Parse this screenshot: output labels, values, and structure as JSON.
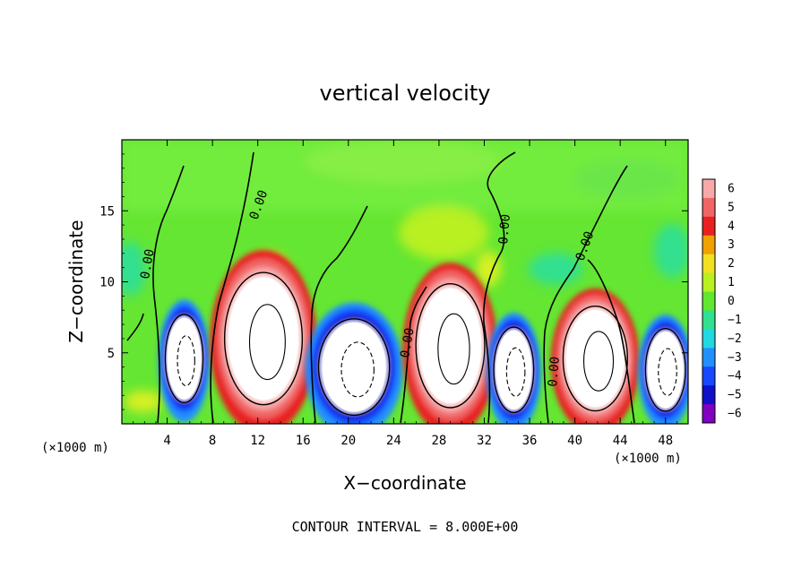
{
  "chart_data": {
    "type": "heatmap",
    "title": "vertical velocity",
    "xlabel": "X−coordinate",
    "ylabel": "Z−coordinate",
    "x_unit_left": "(×1000 m)",
    "x_unit_right": "(×1000 m)",
    "xlim": [
      0,
      50
    ],
    "ylim": [
      0,
      20
    ],
    "x_ticks": [
      4,
      8,
      12,
      16,
      20,
      24,
      28,
      32,
      36,
      40,
      44,
      48
    ],
    "y_ticks": [
      5,
      10,
      15
    ],
    "colorbar": {
      "levels": [
        6,
        5,
        4,
        3,
        2,
        1,
        0,
        -1,
        -2,
        -3,
        -4,
        -5,
        -6
      ],
      "labels": [
        "6",
        "5",
        "4",
        "3",
        "2",
        "1",
        "0",
        "−1",
        "−2",
        "−3",
        "−4",
        "−5",
        "−6"
      ],
      "colors": [
        "#f7a8a8",
        "#f06565",
        "#e82020",
        "#f0a000",
        "#f0e020",
        "#b8f020",
        "#60e830",
        "#30e090",
        "#20d8e0",
        "#2090ff",
        "#1848ff",
        "#1010c8",
        "#8000c0"
      ]
    },
    "cells": [
      {
        "x": 5.5,
        "w": 3.4,
        "z": 4.6,
        "h": 6.4,
        "value": -6
      },
      {
        "x": 12.5,
        "w": 7.0,
        "z": 6.0,
        "h": 9.6,
        "value": 6
      },
      {
        "x": 20.5,
        "w": 6.4,
        "z": 4.0,
        "h": 7.0,
        "value": -6
      },
      {
        "x": 29.0,
        "w": 6.2,
        "z": 5.5,
        "h": 9.0,
        "value": 6
      },
      {
        "x": 34.6,
        "w": 3.6,
        "z": 3.8,
        "h": 6.2,
        "value": -6
      },
      {
        "x": 41.8,
        "w": 5.8,
        "z": 4.6,
        "h": 7.6,
        "value": 6
      },
      {
        "x": 48.0,
        "w": 3.6,
        "z": 3.8,
        "h": 6.0,
        "value": -6
      }
    ],
    "contour_interval_text": "CONTOUR INTERVAL = 8.000E+00",
    "contour_labels": [
      "0.00",
      "0.00",
      "0.00",
      "0.00",
      "0.00",
      "0.00"
    ]
  }
}
